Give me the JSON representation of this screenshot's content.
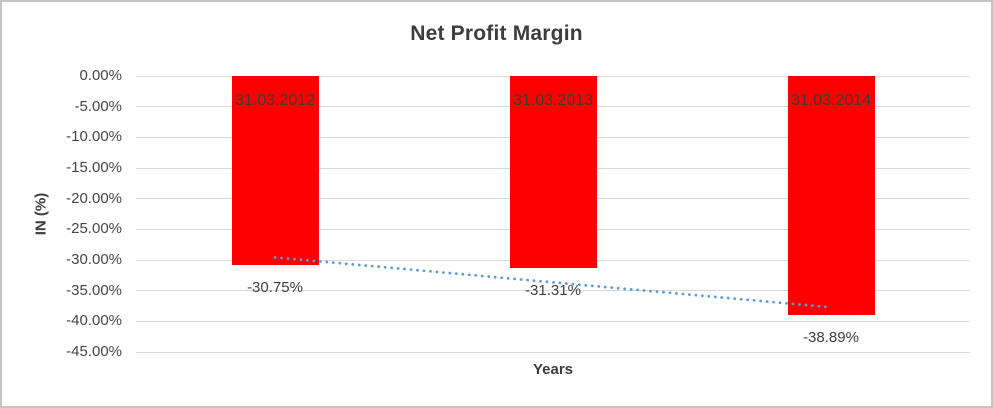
{
  "chart_data": {
    "type": "bar",
    "title": "Net Profit Margin",
    "xlabel": "Years",
    "ylabel": "IN (%)",
    "categories": [
      "31.03.2012",
      "31.03.2013",
      "31.03.2014"
    ],
    "values": [
      -30.75,
      -31.31,
      -38.89
    ],
    "data_labels": [
      "-30.75%",
      "-31.31%",
      "-38.89%"
    ],
    "category_label_position": "inside-end",
    "data_label_position": "outside-end",
    "ylim": [
      0,
      -45
    ],
    "y_tick_values": [
      0,
      -5,
      -10,
      -15,
      -20,
      -25,
      -30,
      -35,
      -40,
      -45
    ],
    "y_tick_labels": [
      "0.00%",
      "-5.00%",
      "-10.00%",
      "-15.00%",
      "-20.00%",
      "-25.00%",
      "-30.00%",
      "-35.00%",
      "-40.00%",
      "-45.00%"
    ],
    "grid": true,
    "legend": "none",
    "trendline": {
      "type": "linear",
      "style": "dotted",
      "fit_values": [
        -29.58,
        -33.65,
        -37.72
      ]
    }
  },
  "colors": {
    "bar": "#ff0000",
    "trendline": "#5b9bd5",
    "title_text": "#3d3d3d",
    "axis_text": "#464646",
    "category_label_text": "#3b3b3b",
    "data_label_text": "#404040",
    "gridline": "#d9d9d9",
    "frame_border": "#c3c3c3",
    "background": "#ffffff"
  }
}
